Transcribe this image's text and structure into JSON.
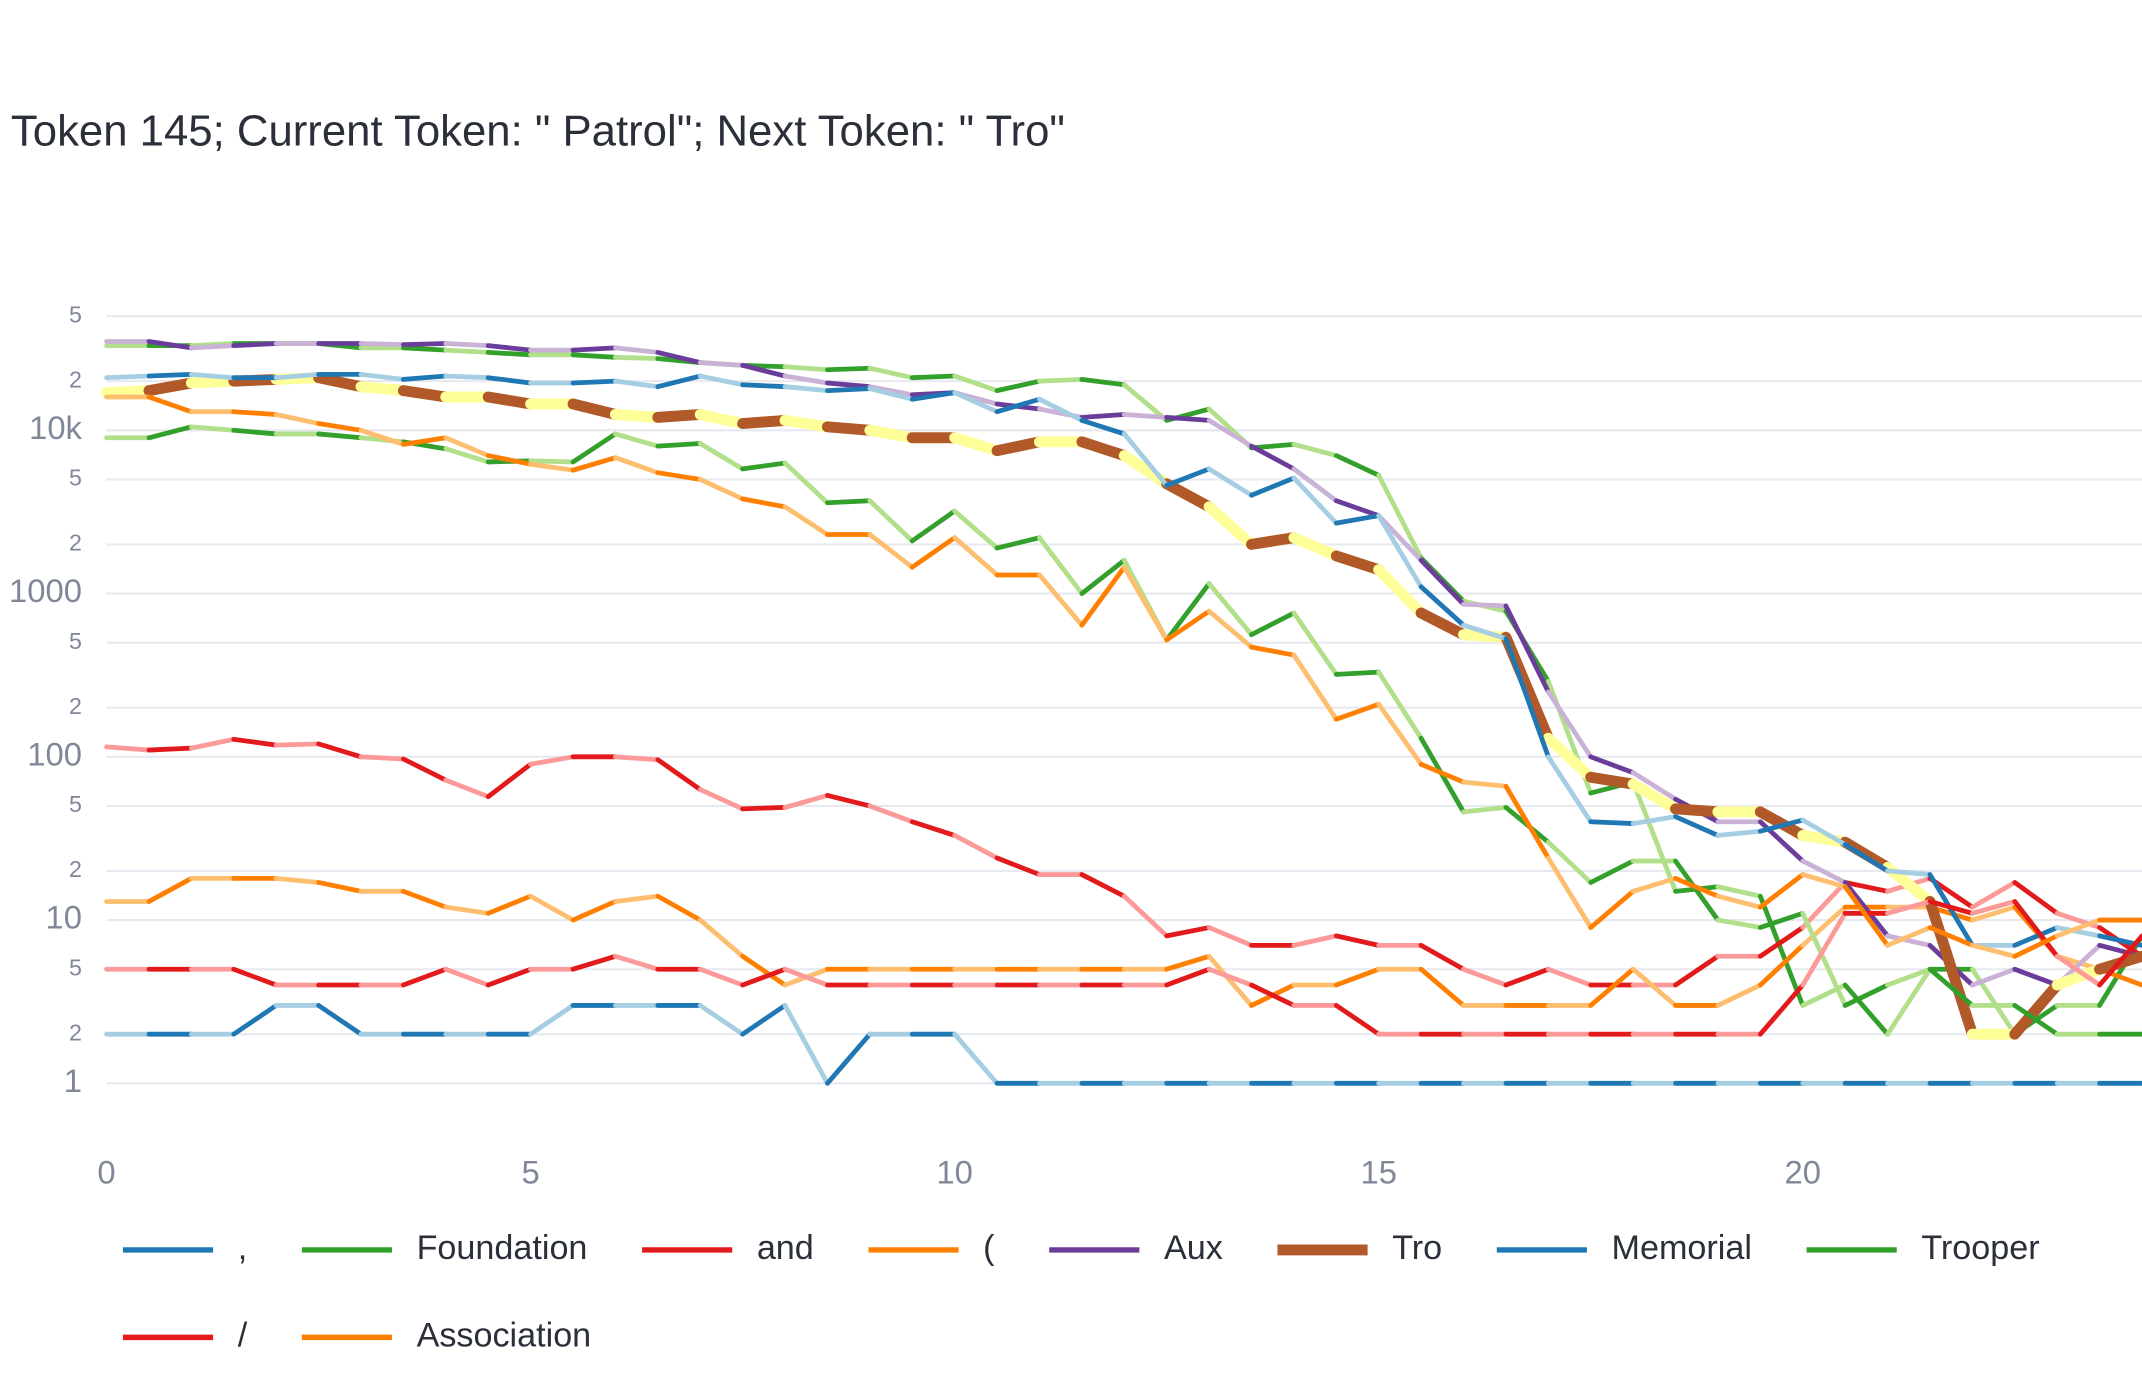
{
  "chart_data": {
    "type": "line",
    "title": "Token 145; Current Token: \" Patrol\"; Next Token: \" Tro\"",
    "log_y": true,
    "grid": true,
    "xlim": [
      0,
      24
    ],
    "xticks": [
      0,
      5,
      10,
      15,
      20
    ],
    "ylim": [
      0.5,
      70000
    ],
    "yticks": [
      1,
      2,
      5,
      10,
      {
        "value": 20,
        "label": "2"
      },
      {
        "value": 50,
        "label": "5"
      },
      100,
      {
        "value": 200,
        "label": "2"
      },
      {
        "value": 500,
        "label": "5"
      },
      1000,
      {
        "value": 2000,
        "label": "2"
      },
      {
        "value": 5000,
        "label": "5"
      },
      {
        "value": 10000,
        "label": "10k"
      },
      {
        "value": 20000,
        "label": "2"
      },
      {
        "value": 50000,
        "label": "5"
      }
    ],
    "x": [
      0,
      0.5,
      1,
      1.5,
      2,
      2.5,
      3,
      3.5,
      4,
      4.5,
      5,
      5.5,
      6,
      6.5,
      7,
      7.5,
      8,
      8.5,
      9,
      9.5,
      10,
      10.5,
      11,
      11.5,
      12,
      12.5,
      13,
      13.5,
      14,
      14.5,
      15,
      15.5,
      16,
      16.5,
      17,
      17.5,
      18,
      18.5,
      19,
      19.5,
      20,
      20.5,
      21,
      21.5,
      22,
      22.5,
      23,
      23.5,
      24
    ],
    "series": [
      {
        "name": ",",
        "color": "#1f78b4",
        "light_color": "#a6cee3",
        "values": [
          2,
          2,
          2,
          2,
          3,
          3,
          2,
          2,
          2,
          2,
          2,
          3,
          3,
          3,
          3,
          2,
          3,
          1,
          2,
          2,
          2,
          1,
          1,
          1,
          1,
          1,
          1,
          1,
          1,
          1,
          1,
          1,
          1,
          1,
          1,
          1,
          1,
          1,
          1,
          1,
          1,
          1,
          1,
          1,
          1,
          1,
          1,
          1,
          1
        ]
      },
      {
        "name": "Foundation",
        "color": "#33a02c",
        "light_color": "#b2df8a",
        "values": [
          33000,
          33000,
          33000,
          34000,
          34000,
          34000,
          32000,
          32000,
          31000,
          30000,
          29000,
          29000,
          28000,
          27500,
          26000,
          25000,
          24500,
          23500,
          24000,
          21000,
          21500,
          17500,
          20000,
          20500,
          19000,
          11500,
          13500,
          7800,
          8200,
          7000,
          5300,
          1650,
          900,
          780,
          290,
          60,
          70,
          15,
          16,
          14,
          3,
          4,
          2,
          5,
          5,
          2,
          3,
          3,
          8
        ]
      },
      {
        "name": "and",
        "color": "#e31a1c",
        "light_color": "#fb9a99",
        "values": [
          115,
          110,
          113,
          128,
          118,
          120,
          100,
          97,
          72,
          57,
          90,
          100,
          100,
          96,
          63,
          48,
          49,
          58,
          50,
          40,
          33,
          24,
          19,
          19,
          14,
          8,
          9,
          7,
          7,
          8,
          7,
          7,
          5,
          4,
          5,
          4,
          4,
          4,
          6,
          6,
          9,
          17,
          15,
          18,
          12,
          17,
          11,
          9,
          6
        ]
      },
      {
        "name": "(",
        "color": "#ff7f00",
        "light_color": "#fdbf6f",
        "values": [
          13,
          13,
          18,
          18,
          18,
          17,
          15,
          15,
          12,
          11,
          14,
          10,
          13,
          14,
          10,
          6,
          4,
          5,
          5,
          5,
          5,
          5,
          5,
          5,
          5,
          5,
          6,
          3,
          4,
          4,
          5,
          5,
          3,
          3,
          3,
          3,
          5,
          3,
          3,
          4,
          7,
          12,
          12,
          12,
          10,
          12,
          6,
          5,
          4
        ]
      },
      {
        "name": "Aux",
        "color": "#6a3d9a",
        "light_color": "#cab2d6",
        "values": [
          35000,
          35000,
          32000,
          33000,
          34000,
          34000,
          34000,
          33500,
          34000,
          33000,
          31000,
          31000,
          32000,
          30000,
          26000,
          25000,
          21500,
          19500,
          18500,
          16500,
          17000,
          14500,
          13500,
          12000,
          12500,
          12000,
          11500,
          8000,
          5800,
          3700,
          3000,
          1600,
          860,
          840,
          250,
          100,
          80,
          55,
          40,
          40,
          23,
          17,
          8,
          7,
          4,
          5,
          4,
          7,
          6
        ]
      },
      {
        "name": "Tro",
        "color": "#b15928",
        "light_color": "#ffff99",
        "highlight": true,
        "values": [
          17000,
          17500,
          19500,
          20000,
          20500,
          21000,
          18500,
          17500,
          16000,
          16000,
          14500,
          14500,
          12500,
          12000,
          12500,
          11000,
          11500,
          10500,
          10000,
          9000,
          9000,
          7500,
          8500,
          8500,
          7000,
          4700,
          3400,
          2000,
          2200,
          1700,
          1400,
          760,
          560,
          540,
          130,
          75,
          68,
          48,
          46,
          46,
          33,
          30,
          21,
          13,
          2,
          2,
          4,
          5,
          6
        ]
      },
      {
        "name": "Memorial",
        "color": "#1f78b4",
        "light_color": "#a6cee3",
        "values": [
          21000,
          21500,
          22000,
          21000,
          21000,
          22000,
          22000,
          20500,
          21500,
          21000,
          19500,
          19500,
          20000,
          18500,
          21500,
          19000,
          18500,
          17500,
          18000,
          15500,
          17000,
          13000,
          15500,
          11500,
          9500,
          4600,
          5800,
          4000,
          5100,
          2700,
          3000,
          1100,
          640,
          530,
          100,
          40,
          39,
          43,
          33,
          35,
          41,
          29,
          20,
          19,
          7,
          7,
          9,
          8,
          7
        ]
      },
      {
        "name": "Trooper",
        "color": "#33a02c",
        "light_color": "#b2df8a",
        "values": [
          9000,
          9000,
          10500,
          10000,
          9500,
          9500,
          9000,
          8500,
          7700,
          6400,
          6500,
          6400,
          9500,
          8000,
          8300,
          5800,
          6300,
          3600,
          3700,
          2100,
          3200,
          1900,
          2200,
          1000,
          1600,
          520,
          1150,
          560,
          760,
          320,
          330,
          130,
          46,
          49,
          30,
          17,
          23,
          23,
          10,
          9,
          11,
          3,
          4,
          5,
          3,
          3,
          2,
          2,
          2
        ]
      },
      {
        "name": "/",
        "color": "#e31a1c",
        "light_color": "#fb9a99",
        "values": [
          5,
          5,
          5,
          5,
          4,
          4,
          4,
          4,
          5,
          4,
          5,
          5,
          6,
          5,
          5,
          4,
          5,
          4,
          4,
          4,
          4,
          4,
          4,
          4,
          4,
          4,
          5,
          4,
          3,
          3,
          2,
          2,
          2,
          2,
          2,
          2,
          2,
          2,
          2,
          2,
          4,
          11,
          11,
          13,
          11,
          13,
          6,
          4,
          8
        ]
      },
      {
        "name": "Association",
        "color": "#ff7f00",
        "light_color": "#fdbf6f",
        "values": [
          16000,
          16000,
          13000,
          13000,
          12500,
          11000,
          10000,
          8200,
          9000,
          7000,
          6200,
          5700,
          6800,
          5500,
          5000,
          3800,
          3400,
          2300,
          2300,
          1450,
          2200,
          1300,
          1300,
          640,
          1450,
          520,
          780,
          470,
          420,
          170,
          210,
          90,
          70,
          66,
          24,
          9,
          15,
          18,
          14,
          12,
          19,
          16,
          7,
          9,
          7,
          6,
          8,
          10,
          10
        ]
      }
    ]
  }
}
